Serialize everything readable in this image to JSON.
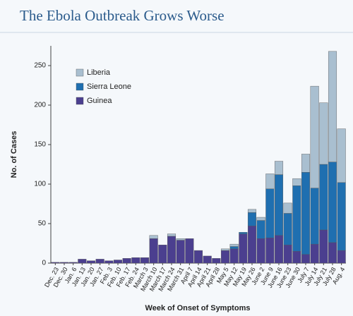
{
  "chart_data": {
    "type": "bar",
    "stacked": true,
    "title": "The Ebola Outbreak Grows Worse",
    "x_label": "Week of Onset of Symptoms",
    "y_label": "No. of Cases",
    "categories": [
      "Dec. 23",
      "Dec. 30",
      "Jan. 6",
      "Jan. 13",
      "Jan. 20",
      "Jan. 27",
      "Feb. 3",
      "Feb. 10",
      "Feb. 17",
      "Feb. 24",
      "March 3",
      "March 10",
      "March 17",
      "March 24",
      "March 31",
      "April 7",
      "April 14",
      "April 21",
      "April 28",
      "May 5",
      "May 12",
      "May 19",
      "May 26",
      "June 2",
      "June 9",
      "June 16",
      "June 23",
      "June 30",
      "July 7",
      "July 14",
      "July 21",
      "July 28",
      "Aug. 4"
    ],
    "series": [
      {
        "name": "Guinea",
        "color": "#4b3f8f",
        "values": [
          1,
          1,
          1,
          5,
          3,
          5,
          3,
          4,
          6,
          7,
          7,
          31,
          23,
          34,
          29,
          31,
          16,
          9,
          6,
          16,
          18,
          37,
          47,
          31,
          32,
          35,
          23,
          15,
          11,
          24,
          42,
          26,
          16
        ]
      },
      {
        "name": "Sierra Leone",
        "color": "#1f6fb0",
        "values": [
          0,
          0,
          0,
          0,
          0,
          0,
          0,
          0,
          0,
          0,
          0,
          0,
          0,
          0,
          0,
          0,
          0,
          0,
          0,
          0,
          3,
          2,
          17,
          23,
          62,
          77,
          40,
          83,
          104,
          71,
          83,
          102,
          86
        ]
      },
      {
        "name": "Liberia",
        "color": "#a9bfd0",
        "values": [
          0,
          0,
          0,
          0,
          0,
          0,
          0,
          0,
          0,
          0,
          0,
          4,
          0,
          3,
          2,
          0,
          0,
          0,
          0,
          2,
          3,
          0,
          4,
          4,
          19,
          17,
          13,
          9,
          23,
          129,
          78,
          140,
          68
        ]
      }
    ],
    "ylim": [
      0,
      275
    ],
    "yticks": [
      0,
      50,
      100,
      150,
      200,
      250
    ]
  }
}
